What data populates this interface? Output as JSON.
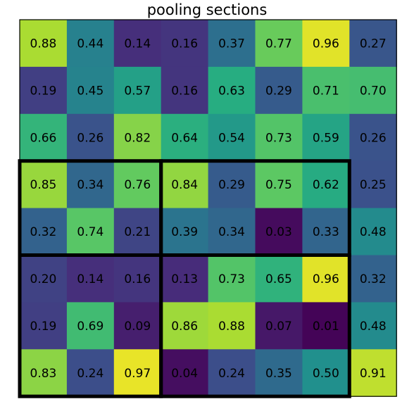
{
  "chart_data": {
    "type": "heatmap",
    "title": "pooling sections",
    "rows": 8,
    "cols": 8,
    "colormap": "viridis",
    "value_range": [
      0,
      1
    ],
    "values": [
      [
        0.88,
        0.44,
        0.14,
        0.16,
        0.37,
        0.77,
        0.96,
        0.27
      ],
      [
        0.19,
        0.45,
        0.57,
        0.16,
        0.63,
        0.29,
        0.71,
        0.7
      ],
      [
        0.66,
        0.26,
        0.82,
        0.64,
        0.54,
        0.73,
        0.59,
        0.26
      ],
      [
        0.85,
        0.34,
        0.76,
        0.84,
        0.29,
        0.75,
        0.62,
        0.25
      ],
      [
        0.32,
        0.74,
        0.21,
        0.39,
        0.34,
        0.03,
        0.33,
        0.48
      ],
      [
        0.2,
        0.14,
        0.16,
        0.13,
        0.73,
        0.65,
        0.96,
        0.32
      ],
      [
        0.19,
        0.69,
        0.09,
        0.86,
        0.88,
        0.07,
        0.01,
        0.48
      ],
      [
        0.83,
        0.24,
        0.97,
        0.04,
        0.24,
        0.35,
        0.5,
        0.91
      ]
    ],
    "labels": [
      [
        "0.88",
        "0.44",
        "0.14",
        "0.16",
        "0.37",
        "0.77",
        "0.96",
        "0.27"
      ],
      [
        "0.19",
        "0.45",
        "0.57",
        "0.16",
        "0.63",
        "0.29",
        "0.71",
        "0.70"
      ],
      [
        "0.66",
        "0.26",
        "0.82",
        "0.64",
        "0.54",
        "0.73",
        "0.59",
        "0.26"
      ],
      [
        "0.85",
        "0.34",
        "0.76",
        "0.84",
        "0.29",
        "0.75",
        "0.62",
        "0.25"
      ],
      [
        "0.32",
        "0.74",
        "0.21",
        "0.39",
        "0.34",
        "0.03",
        "0.33",
        "0.48"
      ],
      [
        "0.20",
        "0.14",
        "0.16",
        "0.13",
        "0.73",
        "0.65",
        "0.96",
        "0.32"
      ],
      [
        "0.19",
        "0.69",
        "0.09",
        "0.86",
        "0.88",
        "0.07",
        "0.01",
        "0.48"
      ],
      [
        "0.83",
        "0.24",
        "0.97",
        "0.04",
        "0.24",
        "0.35",
        "0.50",
        "0.91"
      ]
    ],
    "pooling_sections": [
      {
        "rows": [
          3,
          4
        ],
        "cols": [
          0,
          2
        ]
      },
      {
        "rows": [
          3,
          4
        ],
        "cols": [
          3,
          6
        ]
      },
      {
        "rows": [
          5,
          7
        ],
        "cols": [
          0,
          2
        ]
      },
      {
        "rows": [
          5,
          7
        ],
        "cols": [
          3,
          6
        ]
      }
    ]
  }
}
